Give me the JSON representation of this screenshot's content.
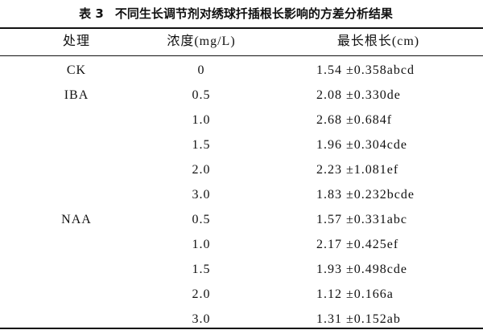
{
  "table": {
    "label": "表 3",
    "title": "不同生长调节剂对绣球扦插根长影响的方差分析结果",
    "header": [
      "处理",
      "浓度(mg/L)",
      "最长根长(cm)"
    ],
    "rows": [
      [
        "CK",
        "0",
        "1.54 ±0.358abcd"
      ],
      [
        "IBA",
        "0.5",
        "2.08 ±0.330de"
      ],
      [
        null,
        "1.0",
        "2.68 ±0.684f"
      ],
      [
        null,
        "1.5",
        "1.96 ±0.304cde"
      ],
      [
        null,
        "2.0",
        "2.23 ±1.081ef"
      ],
      [
        null,
        "3.0",
        "1.83 ±0.232bcde"
      ],
      [
        "NAA",
        "0.5",
        "1.57 ±0.331abc"
      ],
      [
        null,
        "1.0",
        "2.17 ±0.425ef"
      ],
      [
        null,
        "1.5",
        "1.93 ±0.498cde"
      ],
      [
        null,
        "2.0",
        "1.12 ±0.166a"
      ],
      [
        null,
        "3.0",
        "1.31 ±0.152ab"
      ]
    ]
  }
}
